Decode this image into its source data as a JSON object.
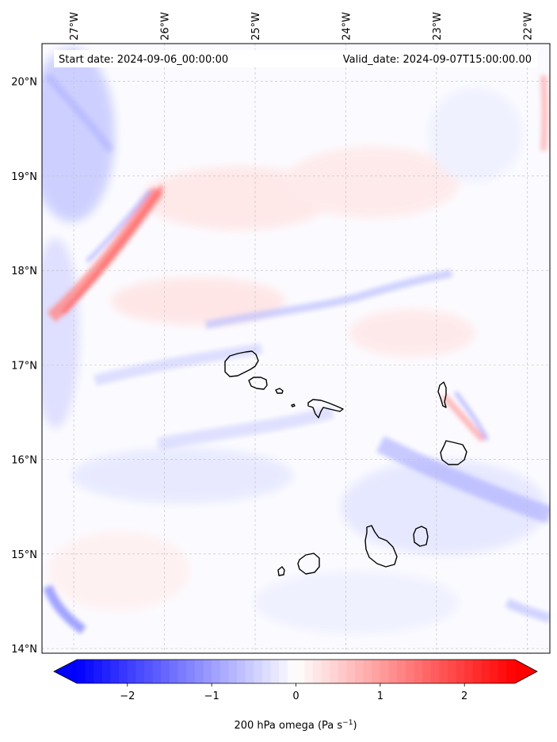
{
  "map": {
    "header_left": "Start date: 2024-09-06_00:00:00",
    "header_right": "Valid_date: 2024-09-07T15:00:00.00",
    "lon_labels": [
      "27°W",
      "26°W",
      "25°W",
      "24°W",
      "23°W",
      "22°W"
    ],
    "lon_values": [
      -27,
      -26,
      -25,
      -24,
      -23,
      -22
    ],
    "lat_labels": [
      "20°N",
      "19°N",
      "18°N",
      "17°N",
      "16°N",
      "15°N",
      "14°N"
    ],
    "lat_values": [
      20,
      19,
      18,
      17,
      16,
      15,
      14
    ],
    "extent": {
      "lon_min": -27.35,
      "lon_max": -21.75,
      "lat_min": 13.95,
      "lat_max": 20.4
    },
    "gridlines": true,
    "islands": [
      "Santo Antão",
      "São Vicente",
      "Santa Luzia",
      "São Nicolau",
      "Sal",
      "Boa Vista",
      "Maio",
      "Santiago",
      "Fogo",
      "Brava"
    ]
  },
  "colorbar": {
    "label": "200 hPa omega (Pa s",
    "label_exponent": "−1",
    "label_close": ")",
    "tick_labels": [
      "−2",
      "−1",
      "0",
      "1",
      "2"
    ],
    "tick_values": [
      -2,
      -1,
      0,
      1,
      2
    ],
    "vmin": -2.6,
    "vmax": 2.6,
    "extend": "both",
    "colormap": "bwr",
    "negative_color": "#0000ff",
    "neutral_color": "#ffffff",
    "positive_color": "#ff0000"
  }
}
